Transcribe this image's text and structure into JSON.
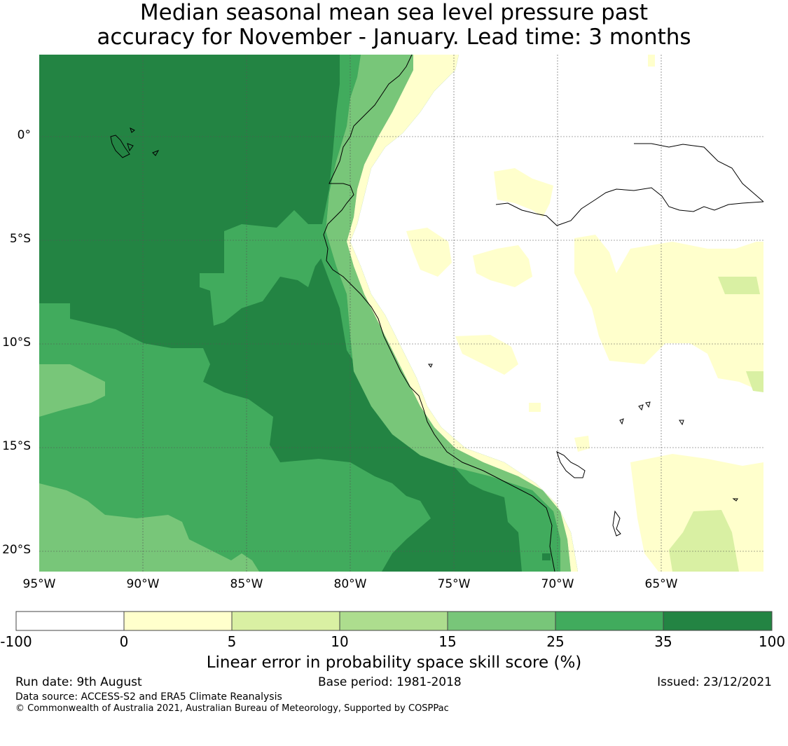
{
  "title": {
    "line1": "Median seasonal mean sea level pressure past",
    "line2": "accuracy for November - January. Lead time: 3 months"
  },
  "map": {
    "lat_labels": [
      "0°",
      "5°S",
      "10°S",
      "15°S",
      "20°S"
    ],
    "lon_labels": [
      "95°W",
      "90°W",
      "85°W",
      "80°W",
      "75°W",
      "70°W",
      "65°W"
    ],
    "gridlines": true,
    "region": "Eastern Pacific / western South America (Ecuador, Peru, northern Chile)"
  },
  "colorbar": {
    "ticks": [
      "-100",
      "0",
      "5",
      "10",
      "15",
      "25",
      "35",
      "100"
    ],
    "colors": [
      "#ffffff",
      "#ffffcc",
      "#d9f0a3",
      "#addd8e",
      "#78c679",
      "#41ab5d",
      "#238443"
    ],
    "label": "Linear error in probability space skill score (%)"
  },
  "footer": {
    "run_date": "Run date: 9th August",
    "base_period": "Base period: 1981-2018",
    "issued": "Issued: 23/12/2021",
    "data_source": "Data source: ACCESS-S2 and ERA5 Climate Reanalysis",
    "copyright": "© Commonwealth of Australia 2021, Australian Bureau of Meteorology, Supported by COSPPac"
  }
}
